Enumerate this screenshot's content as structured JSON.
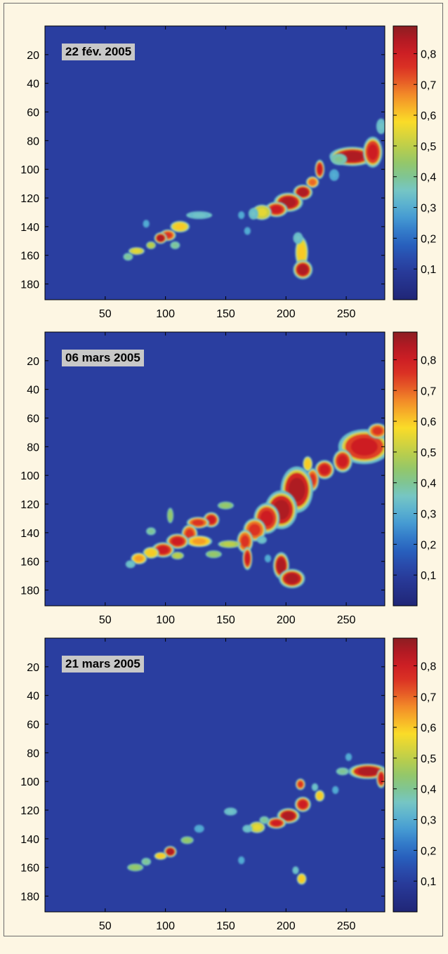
{
  "chart_data": [
    {
      "type": "heatmap",
      "title": "22 fév. 2005",
      "xlim": [
        0,
        282
      ],
      "ylim": [
        191,
        0
      ],
      "xticks": [
        50,
        100,
        150,
        200,
        250
      ],
      "yticks": [
        20,
        40,
        60,
        80,
        100,
        120,
        140,
        160,
        180
      ],
      "colorbar": {
        "range": [
          0,
          0.89
        ],
        "ticks": [
          "0,8",
          "0,7",
          "0,6",
          "0,5",
          "0,4",
          "0,3",
          "0,2",
          "0,1"
        ]
      },
      "background_value": 0,
      "blobs": [
        {
          "x": 255,
          "y": 91,
          "rx": 14,
          "ry": 5,
          "v": 0.85
        },
        {
          "x": 272,
          "y": 88,
          "rx": 6,
          "ry": 8,
          "v": 0.8
        },
        {
          "x": 279,
          "y": 70,
          "rx": 3,
          "ry": 4,
          "v": 0.35
        },
        {
          "x": 244,
          "y": 93,
          "rx": 5,
          "ry": 3,
          "v": 0.4
        },
        {
          "x": 240,
          "y": 104,
          "rx": 3,
          "ry": 3,
          "v": 0.3
        },
        {
          "x": 228,
          "y": 100,
          "rx": 3,
          "ry": 5,
          "v": 0.8
        },
        {
          "x": 222,
          "y": 109,
          "rx": 4,
          "ry": 3,
          "v": 0.7
        },
        {
          "x": 214,
          "y": 116,
          "rx": 6,
          "ry": 4,
          "v": 0.85
        },
        {
          "x": 202,
          "y": 123,
          "rx": 9,
          "ry": 5,
          "v": 0.85
        },
        {
          "x": 192,
          "y": 128,
          "rx": 7,
          "ry": 4,
          "v": 0.8
        },
        {
          "x": 180,
          "y": 130,
          "rx": 6,
          "ry": 4,
          "v": 0.55
        },
        {
          "x": 173,
          "y": 131,
          "rx": 3,
          "ry": 3,
          "v": 0.35
        },
        {
          "x": 163,
          "y": 132,
          "rx": 2,
          "ry": 2,
          "v": 0.3
        },
        {
          "x": 168,
          "y": 143,
          "rx": 2,
          "ry": 2,
          "v": 0.3
        },
        {
          "x": 213,
          "y": 158,
          "rx": 4,
          "ry": 8,
          "v": 0.6
        },
        {
          "x": 214,
          "y": 170,
          "rx": 6,
          "ry": 5,
          "v": 0.85
        },
        {
          "x": 210,
          "y": 148,
          "rx": 3,
          "ry": 3,
          "v": 0.35
        },
        {
          "x": 128,
          "y": 132,
          "rx": 8,
          "ry": 2,
          "v": 0.35
        },
        {
          "x": 112,
          "y": 140,
          "rx": 6,
          "ry": 3,
          "v": 0.6
        },
        {
          "x": 102,
          "y": 146,
          "rx": 5,
          "ry": 3,
          "v": 0.75
        },
        {
          "x": 96,
          "y": 148,
          "rx": 4,
          "ry": 3,
          "v": 0.85
        },
        {
          "x": 88,
          "y": 153,
          "rx": 3,
          "ry": 2,
          "v": 0.5
        },
        {
          "x": 76,
          "y": 157,
          "rx": 5,
          "ry": 2,
          "v": 0.55
        },
        {
          "x": 69,
          "y": 161,
          "rx": 3,
          "ry": 2,
          "v": 0.4
        },
        {
          "x": 84,
          "y": 138,
          "rx": 2,
          "ry": 2,
          "v": 0.3
        },
        {
          "x": 108,
          "y": 153,
          "rx": 3,
          "ry": 2,
          "v": 0.4
        }
      ]
    },
    {
      "type": "heatmap",
      "title": "06 mars 2005",
      "xlim": [
        0,
        282
      ],
      "ylim": [
        191,
        0
      ],
      "xticks": [
        50,
        100,
        150,
        200,
        250
      ],
      "yticks": [
        20,
        40,
        60,
        80,
        100,
        120,
        140,
        160,
        180
      ],
      "colorbar": {
        "range": [
          0,
          0.89
        ],
        "ticks": [
          "0,8",
          "0,7",
          "0,6",
          "0,5",
          "0,4",
          "0,3",
          "0,2",
          "0,1"
        ]
      },
      "background_value": 0,
      "blobs": [
        {
          "x": 265,
          "y": 80,
          "rx": 16,
          "ry": 9,
          "v": 0.8
        },
        {
          "x": 276,
          "y": 69,
          "rx": 6,
          "ry": 4,
          "v": 0.75
        },
        {
          "x": 247,
          "y": 90,
          "rx": 6,
          "ry": 6,
          "v": 0.8
        },
        {
          "x": 232,
          "y": 96,
          "rx": 6,
          "ry": 5,
          "v": 0.8
        },
        {
          "x": 222,
          "y": 103,
          "rx": 4,
          "ry": 6,
          "v": 0.75
        },
        {
          "x": 218,
          "y": 92,
          "rx": 3,
          "ry": 4,
          "v": 0.6
        },
        {
          "x": 209,
          "y": 110,
          "rx": 10,
          "ry": 12,
          "v": 0.85
        },
        {
          "x": 196,
          "y": 124,
          "rx": 10,
          "ry": 10,
          "v": 0.85
        },
        {
          "x": 184,
          "y": 130,
          "rx": 8,
          "ry": 8,
          "v": 0.8
        },
        {
          "x": 174,
          "y": 138,
          "rx": 7,
          "ry": 6,
          "v": 0.75
        },
        {
          "x": 166,
          "y": 146,
          "rx": 5,
          "ry": 6,
          "v": 0.75
        },
        {
          "x": 168,
          "y": 158,
          "rx": 3,
          "ry": 6,
          "v": 0.8
        },
        {
          "x": 196,
          "y": 163,
          "rx": 5,
          "ry": 7,
          "v": 0.85
        },
        {
          "x": 205,
          "y": 172,
          "rx": 8,
          "ry": 5,
          "v": 0.85
        },
        {
          "x": 150,
          "y": 121,
          "rx": 5,
          "ry": 2,
          "v": 0.45
        },
        {
          "x": 138,
          "y": 131,
          "rx": 5,
          "ry": 4,
          "v": 0.8
        },
        {
          "x": 127,
          "y": 133,
          "rx": 7,
          "ry": 3,
          "v": 0.75
        },
        {
          "x": 120,
          "y": 141,
          "rx": 5,
          "ry": 5,
          "v": 0.75
        },
        {
          "x": 128,
          "y": 146,
          "rx": 8,
          "ry": 3,
          "v": 0.65
        },
        {
          "x": 110,
          "y": 146,
          "rx": 7,
          "ry": 4,
          "v": 0.8
        },
        {
          "x": 98,
          "y": 152,
          "rx": 7,
          "ry": 4,
          "v": 0.8
        },
        {
          "x": 88,
          "y": 154,
          "rx": 5,
          "ry": 3,
          "v": 0.6
        },
        {
          "x": 78,
          "y": 158,
          "rx": 5,
          "ry": 3,
          "v": 0.65
        },
        {
          "x": 71,
          "y": 162,
          "rx": 3,
          "ry": 2,
          "v": 0.35
        },
        {
          "x": 104,
          "y": 128,
          "rx": 2,
          "ry": 4,
          "v": 0.45
        },
        {
          "x": 88,
          "y": 139,
          "rx": 3,
          "ry": 2,
          "v": 0.4
        },
        {
          "x": 153,
          "y": 148,
          "rx": 7,
          "ry": 2,
          "v": 0.5
        },
        {
          "x": 140,
          "y": 155,
          "rx": 5,
          "ry": 2,
          "v": 0.45
        },
        {
          "x": 110,
          "y": 156,
          "rx": 4,
          "ry": 2,
          "v": 0.5
        },
        {
          "x": 180,
          "y": 145,
          "rx": 3,
          "ry": 2,
          "v": 0.35
        },
        {
          "x": 185,
          "y": 158,
          "rx": 2,
          "ry": 2,
          "v": 0.3
        }
      ]
    },
    {
      "type": "heatmap",
      "title": "21 mars 2005",
      "xlim": [
        0,
        282
      ],
      "ylim": [
        191,
        0
      ],
      "xticks": [
        50,
        100,
        150,
        200,
        250
      ],
      "yticks": [
        20,
        40,
        60,
        80,
        100,
        120,
        140,
        160,
        180
      ],
      "colorbar": {
        "range": [
          0,
          0.89
        ],
        "ticks": [
          "0,8",
          "0,7",
          "0,6",
          "0,5",
          "0,4",
          "0,3",
          "0,2",
          "0,1"
        ]
      },
      "background_value": 0,
      "blobs": [
        {
          "x": 268,
          "y": 93,
          "rx": 12,
          "ry": 4,
          "v": 0.85
        },
        {
          "x": 279,
          "y": 98,
          "rx": 3,
          "ry": 5,
          "v": 0.8
        },
        {
          "x": 247,
          "y": 93,
          "rx": 4,
          "ry": 2,
          "v": 0.4
        },
        {
          "x": 252,
          "y": 83,
          "rx": 2,
          "ry": 2,
          "v": 0.3
        },
        {
          "x": 241,
          "y": 106,
          "rx": 2,
          "ry": 2,
          "v": 0.3
        },
        {
          "x": 228,
          "y": 110,
          "rx": 3,
          "ry": 3,
          "v": 0.6
        },
        {
          "x": 212,
          "y": 102,
          "rx": 3,
          "ry": 3,
          "v": 0.75
        },
        {
          "x": 214,
          "y": 116,
          "rx": 5,
          "ry": 4,
          "v": 0.8
        },
        {
          "x": 202,
          "y": 124,
          "rx": 7,
          "ry": 4,
          "v": 0.85
        },
        {
          "x": 192,
          "y": 129,
          "rx": 6,
          "ry": 3,
          "v": 0.8
        },
        {
          "x": 182,
          "y": 127,
          "rx": 3,
          "ry": 2,
          "v": 0.4
        },
        {
          "x": 176,
          "y": 132,
          "rx": 5,
          "ry": 3,
          "v": 0.55
        },
        {
          "x": 168,
          "y": 133,
          "rx": 3,
          "ry": 2,
          "v": 0.35
        },
        {
          "x": 154,
          "y": 121,
          "rx": 4,
          "ry": 2,
          "v": 0.35
        },
        {
          "x": 128,
          "y": 133,
          "rx": 3,
          "ry": 2,
          "v": 0.3
        },
        {
          "x": 118,
          "y": 141,
          "rx": 4,
          "ry": 2,
          "v": 0.45
        },
        {
          "x": 104,
          "y": 149,
          "rx": 4,
          "ry": 3,
          "v": 0.85
        },
        {
          "x": 96,
          "y": 152,
          "rx": 4,
          "ry": 2,
          "v": 0.6
        },
        {
          "x": 75,
          "y": 160,
          "rx": 5,
          "ry": 2,
          "v": 0.45
        },
        {
          "x": 84,
          "y": 156,
          "rx": 3,
          "ry": 2,
          "v": 0.4
        },
        {
          "x": 213,
          "y": 168,
          "rx": 3,
          "ry": 3,
          "v": 0.6
        },
        {
          "x": 208,
          "y": 162,
          "rx": 2,
          "ry": 2,
          "v": 0.35
        },
        {
          "x": 163,
          "y": 155,
          "rx": 2,
          "ry": 2,
          "v": 0.3
        },
        {
          "x": 224,
          "y": 104,
          "rx": 2,
          "ry": 2,
          "v": 0.35
        }
      ]
    }
  ]
}
